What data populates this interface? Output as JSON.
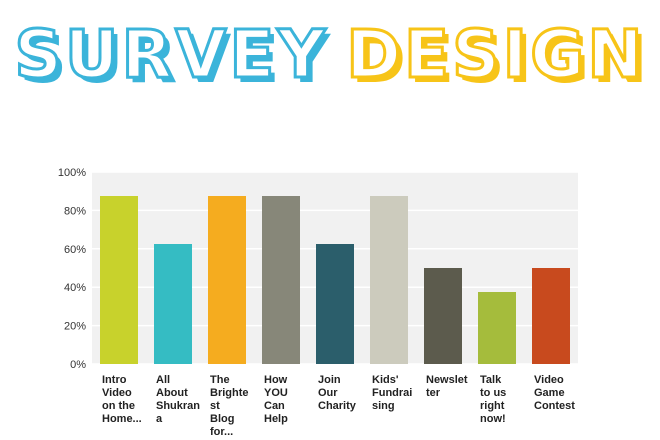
{
  "title": {
    "word1": "SURVEY",
    "word2": "DESIGN"
  },
  "chart_data": {
    "type": "bar",
    "categories": [
      [
        "Intro",
        "Video",
        "on the",
        "Home..."
      ],
      [
        "All",
        "About",
        "Shukran",
        "a"
      ],
      [
        "The",
        "Brighte",
        "st",
        "Blog",
        "for..."
      ],
      [
        "How",
        "YOU",
        "Can",
        "Help"
      ],
      [
        "Join",
        "Our",
        "Charity"
      ],
      [
        "Kids'",
        "Fundrai",
        "sing"
      ],
      [
        "Newslet",
        "ter"
      ],
      [
        "Talk",
        "to us",
        "right",
        "now!"
      ],
      [
        "Video",
        "Game",
        "Contest"
      ]
    ],
    "values": [
      87.5,
      62.5,
      87.5,
      87.5,
      62.5,
      87.5,
      50,
      37.5,
      50
    ],
    "colors": [
      "#c8d22c",
      "#35bcc3",
      "#f5ac1f",
      "#878779",
      "#2b5e6b",
      "#cccbbd",
      "#5c5b4d",
      "#a5bc3c",
      "#c84a1e"
    ],
    "yticks": [
      "0%",
      "20%",
      "40%",
      "60%",
      "80%",
      "100%"
    ],
    "ylim": [
      0,
      100
    ],
    "grid": true,
    "plot_background": "#f1f1f1"
  }
}
